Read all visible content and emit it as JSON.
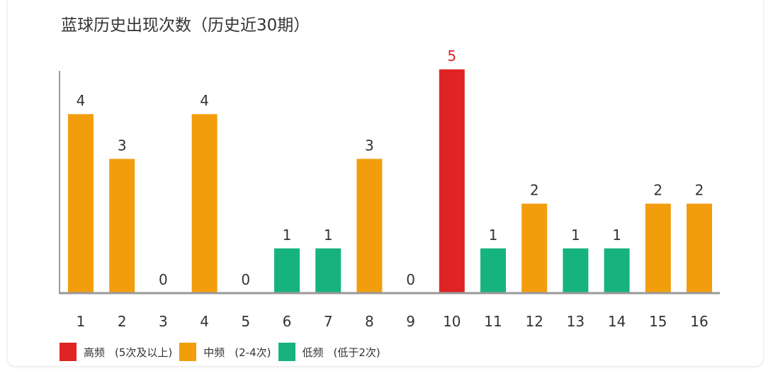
{
  "chart_data": {
    "type": "bar",
    "title": "蓝球历史出现次数（历史近30期）",
    "categories": [
      "1",
      "2",
      "3",
      "4",
      "5",
      "6",
      "7",
      "8",
      "9",
      "10",
      "11",
      "12",
      "13",
      "14",
      "15",
      "16"
    ],
    "values": [
      4,
      3,
      0,
      4,
      0,
      1,
      1,
      3,
      0,
      5,
      1,
      2,
      1,
      1,
      2,
      2
    ],
    "ylim": [
      0,
      5
    ],
    "grid": false,
    "legend_position": "bottom-left",
    "colors": {
      "high": "#e02424",
      "mid": "#f29e0c",
      "low": "#16b37f",
      "label_default": "#333333",
      "label_high": "#e02424",
      "axis": "#999999"
    },
    "legend": [
      {
        "key": "high",
        "label": "高频",
        "note": "(5次及以上)"
      },
      {
        "key": "mid",
        "label": "中频",
        "note": "(2-4次)"
      },
      {
        "key": "low",
        "label": "低频",
        "note": "(低于2次)"
      }
    ]
  }
}
